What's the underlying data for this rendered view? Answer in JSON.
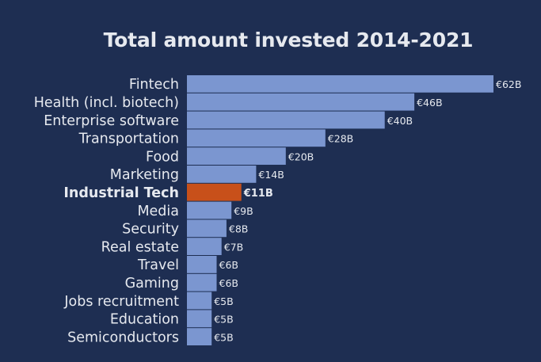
{
  "chart_data": {
    "type": "bar",
    "orientation": "horizontal",
    "title": "Total amount invested 2014-2021",
    "xlabel": "",
    "ylabel": "",
    "xlim": [
      0,
      62
    ],
    "categories": [
      "Fintech",
      "Health (incl. biotech)",
      "Enterprise software",
      "Transportation",
      "Food",
      "Marketing",
      "Industrial Tech",
      "Media",
      "Security",
      "Real estate",
      "Travel",
      "Gaming",
      "Jobs recruitment",
      "Education",
      "Semiconductors"
    ],
    "values": [
      62,
      46,
      40,
      28,
      20,
      14,
      11,
      9,
      8,
      7,
      6,
      6,
      5,
      5,
      5
    ],
    "value_labels": [
      "€62B",
      "€46B",
      "€40B",
      "€28B",
      "€20B",
      "€14B",
      "€11B",
      "€9B",
      "€8B",
      "€7B",
      "€6B",
      "€6B",
      "€5B",
      "€5B",
      "€5B"
    ],
    "highlight_category": "Industrial Tech",
    "grid": false,
    "legend": "none"
  },
  "colors": {
    "background": "#1e2e52",
    "bar": "#7b96d0",
    "highlight": "#c8501a",
    "text": "#e6e9ef"
  }
}
